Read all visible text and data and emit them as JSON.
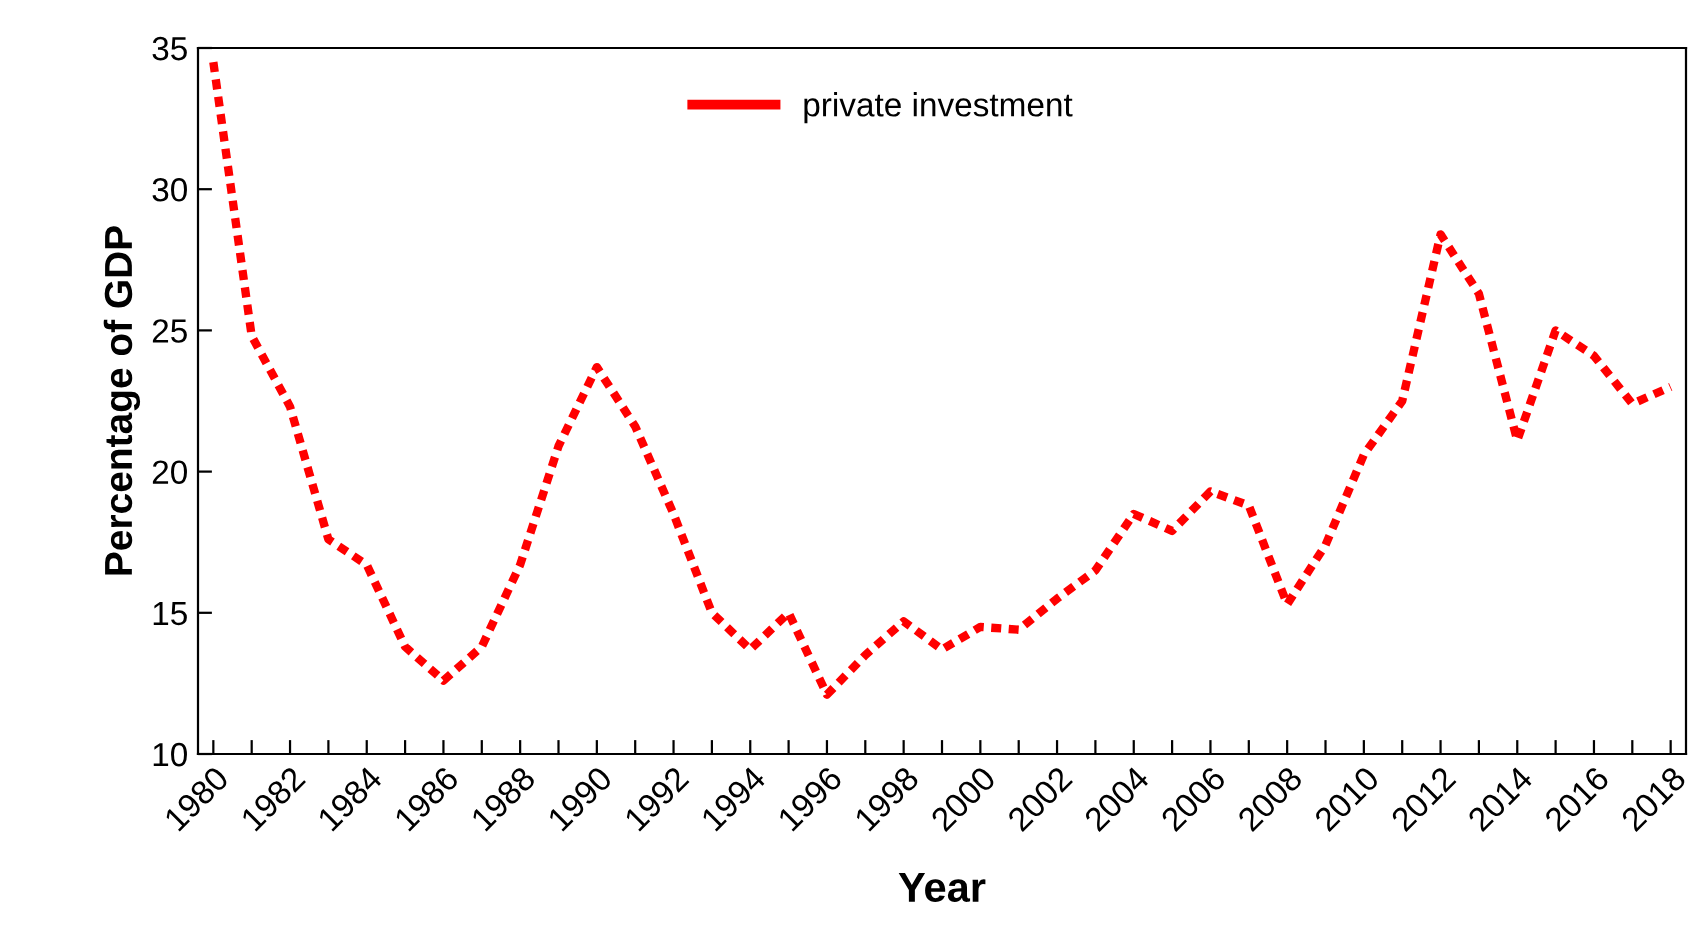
{
  "chart_data": {
    "type": "line",
    "xlabel": "Year",
    "ylabel": "Percentage of GDP",
    "x": [
      1980,
      1981,
      1982,
      1983,
      1984,
      1985,
      1986,
      1987,
      1988,
      1989,
      1990,
      1991,
      1992,
      1993,
      1994,
      1995,
      1996,
      1997,
      1998,
      1999,
      2000,
      2001,
      2002,
      2003,
      2004,
      2005,
      2006,
      2007,
      2008,
      2009,
      2010,
      2011,
      2012,
      2013,
      2014,
      2015,
      2016,
      2017,
      2018
    ],
    "series": [
      {
        "name": "private investment",
        "color": "#ff0000",
        "values": [
          34.5,
          24.8,
          22.3,
          17.6,
          16.7,
          13.8,
          12.6,
          13.8,
          16.7,
          20.9,
          23.7,
          21.6,
          18.5,
          15.0,
          13.7,
          15.0,
          12.1,
          13.5,
          14.7,
          13.7,
          14.5,
          14.4,
          15.5,
          16.5,
          18.5,
          17.9,
          19.3,
          18.8,
          15.3,
          17.4,
          20.6,
          22.5,
          28.4,
          26.3,
          21.1,
          25.0,
          24.1,
          22.4,
          23.0
        ]
      }
    ],
    "xlim": [
      1979.6,
      2018.4
    ],
    "ylim": [
      10,
      35
    ],
    "yticks": [
      10,
      15,
      20,
      25,
      30,
      35
    ],
    "xticks": [
      1980,
      {
        "value": 1981,
        "label": null
      },
      1982,
      {
        "value": 1983,
        "label": null
      },
      1984,
      {
        "value": 1985,
        "label": null
      },
      1986,
      {
        "value": 1987,
        "label": null
      },
      1988,
      {
        "value": 1989,
        "label": null
      },
      1990,
      {
        "value": 1991,
        "label": null
      },
      1992,
      {
        "value": 1993,
        "label": null
      },
      1994,
      {
        "value": 1995,
        "label": null
      },
      1996,
      {
        "value": 1997,
        "label": null
      },
      1998,
      {
        "value": 1999,
        "label": null
      },
      2000,
      {
        "value": 2001,
        "label": null
      },
      2002,
      {
        "value": 2003,
        "label": null
      },
      2004,
      {
        "value": 2005,
        "label": null
      },
      2006,
      {
        "value": 2007,
        "label": null
      },
      2008,
      {
        "value": 2009,
        "label": null
      },
      2010,
      {
        "value": 2011,
        "label": null
      },
      2012,
      {
        "value": 2013,
        "label": null
      },
      2014,
      {
        "value": 2015,
        "label": null
      },
      2016,
      {
        "value": 2017,
        "label": null
      },
      2018
    ],
    "legend": "top",
    "line_style": "dashed",
    "grid": false
  }
}
